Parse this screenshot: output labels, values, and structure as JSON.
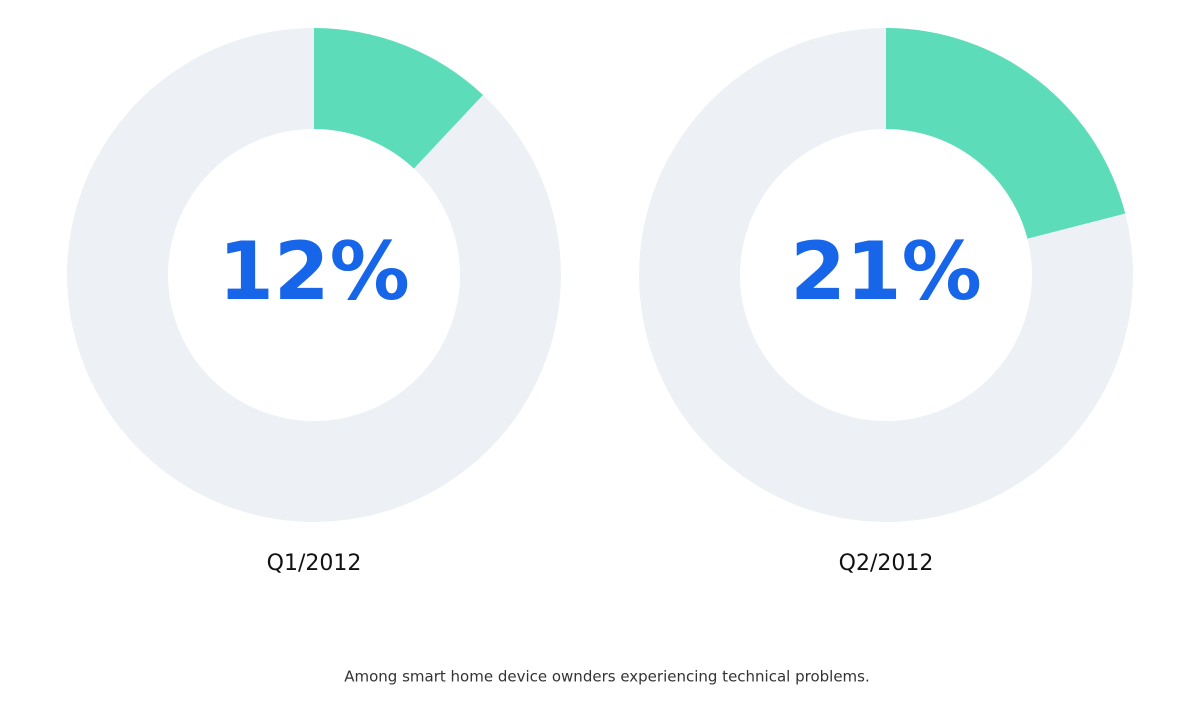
{
  "chart_data": [
    {
      "type": "donut",
      "label": "Q1/2012",
      "values": [
        12,
        88
      ],
      "value_labels": [
        "12%",
        null
      ],
      "colors": [
        "#5cdcb9",
        "#edf1f5"
      ],
      "label_color": "#1766ea"
    },
    {
      "type": "donut",
      "label": "Q2/2012",
      "values": [
        21,
        79
      ],
      "value_labels": [
        "21%",
        null
      ],
      "colors": [
        "#5cdcb9",
        "#edf1f5"
      ],
      "label_color": "#1766ea"
    }
  ],
  "caption": "Among smart home device ownders experiencing technical problems."
}
